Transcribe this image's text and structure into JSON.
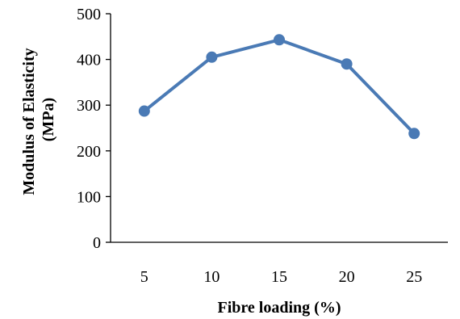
{
  "chart_data": {
    "type": "line",
    "xlabel": "Fibre loading (%)",
    "ylabel_lines": [
      "Modulus of Elasticity",
      "(MPa)"
    ],
    "categories": [
      "5",
      "10",
      "15",
      "20",
      "25"
    ],
    "series": [
      {
        "values": [
          287,
          405,
          443,
          390,
          238
        ]
      }
    ],
    "ylim": [
      0,
      500
    ],
    "yticks": [
      "0",
      "100",
      "200",
      "300",
      "400",
      "500"
    ],
    "grid": false,
    "legend": "none",
    "colors": {
      "series": "#4a7ab5",
      "axis": "#000000"
    }
  }
}
